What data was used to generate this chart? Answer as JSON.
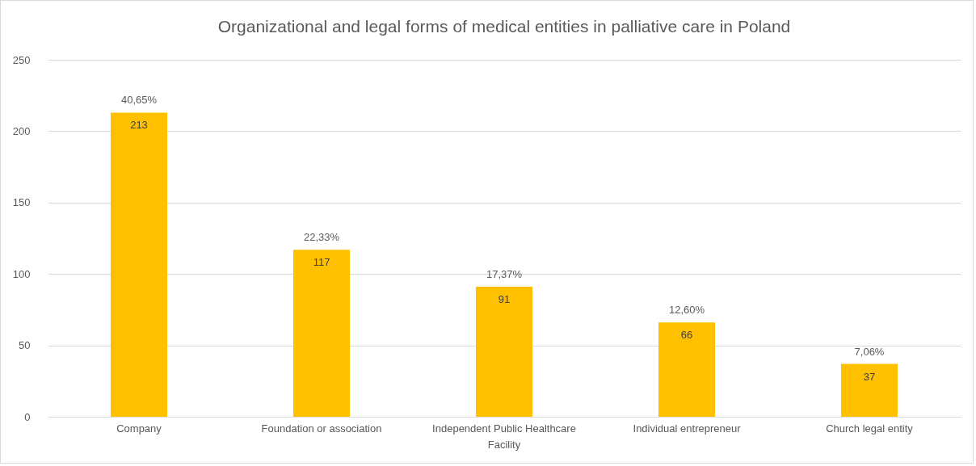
{
  "chart_data": {
    "type": "bar",
    "title": "Organizational and legal forms of medical entities in palliative care in Poland",
    "categories": [
      "Company",
      "Foundation or association",
      "Independent Public Healthcare Facility",
      "Individual entrepreneur",
      "Church legal entity"
    ],
    "values": [
      213,
      117,
      91,
      66,
      37
    ],
    "color": "#ffc000",
    "data_labels": true,
    "ylim": [
      0,
      250
    ],
    "yticks": [
      0,
      50,
      100,
      150,
      200,
      250
    ],
    "grid": "y",
    "annotations": [
      {
        "text": "40,65%",
        "x": "Company",
        "y": 213
      },
      {
        "text": "22,33%",
        "x": "Foundation or association",
        "y": 117
      },
      {
        "text": "17,37%",
        "x": "Independent Public Healthcare Facility",
        "y": 91
      },
      {
        "text": "12,60%",
        "x": "Individual entrepreneur",
        "y": 66
      },
      {
        "text": "7,06%",
        "x": "Church legal entity",
        "y": 37
      }
    ]
  }
}
